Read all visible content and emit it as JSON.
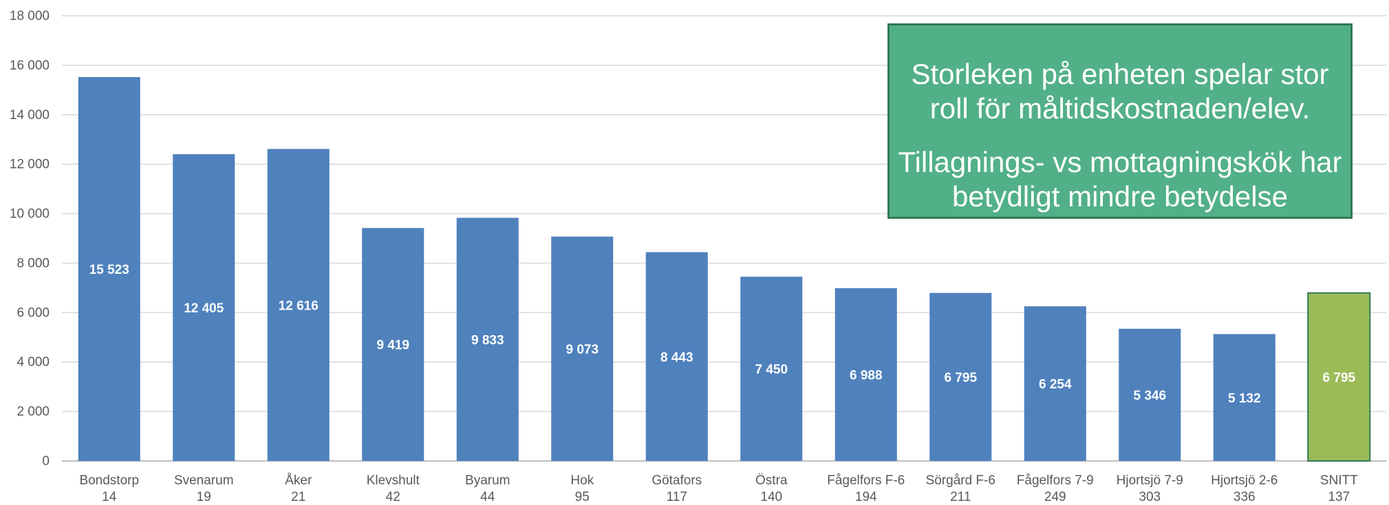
{
  "chart_data": {
    "type": "bar",
    "categories": [
      {
        "name": "Bondstorp",
        "count": "14"
      },
      {
        "name": "Svenarum",
        "count": "19"
      },
      {
        "name": "Åker",
        "count": "21"
      },
      {
        "name": "Klevshult",
        "count": "42"
      },
      {
        "name": "Byarum",
        "count": "44"
      },
      {
        "name": "Hok",
        "count": "95"
      },
      {
        "name": "Götafors",
        "count": "117"
      },
      {
        "name": "Östra",
        "count": "140"
      },
      {
        "name": "Fågelfors F-6",
        "count": "194"
      },
      {
        "name": "Sörgård F-6",
        "count": "211"
      },
      {
        "name": "Fågelfors 7-9",
        "count": "249"
      },
      {
        "name": "Hjortsjö 7-9",
        "count": "303"
      },
      {
        "name": "Hjortsjö 2-6",
        "count": "336"
      },
      {
        "name": "SNITT",
        "count": "137"
      }
    ],
    "values": [
      15523,
      12405,
      12616,
      9419,
      9833,
      9073,
      8443,
      7450,
      6988,
      6795,
      6254,
      5346,
      5132,
      6795
    ],
    "data_labels": [
      "15 523",
      "12 405",
      "12 616",
      "9 419",
      "9 833",
      "9 073",
      "8 443",
      "7 450",
      "6 988",
      "6 795",
      "6 254",
      "5 346",
      "5 132",
      "6 795"
    ],
    "highlight_index": 13,
    "ylim": [
      0,
      18000
    ],
    "yticks": [
      0,
      2000,
      4000,
      6000,
      8000,
      10000,
      12000,
      14000,
      16000,
      18000
    ],
    "ytick_labels": [
      "0",
      "2 000",
      "4 000",
      "6 000",
      "8 000",
      "10 000",
      "12 000",
      "14 000",
      "16 000",
      "18 000"
    ],
    "grid": true,
    "legend": "none",
    "colors": {
      "bar": "#4f81bd",
      "highlight": "#9bbb59",
      "highlight_border": "#2f7a56",
      "grid": "#d9d9d9",
      "axis": "#bfbfbf"
    }
  },
  "callout": {
    "line1": "Storleken på enheten spelar stor roll för måltidskostnaden/elev.",
    "line2": "Tillagnings- vs mottagningskök har betydligt mindre betydelse"
  }
}
